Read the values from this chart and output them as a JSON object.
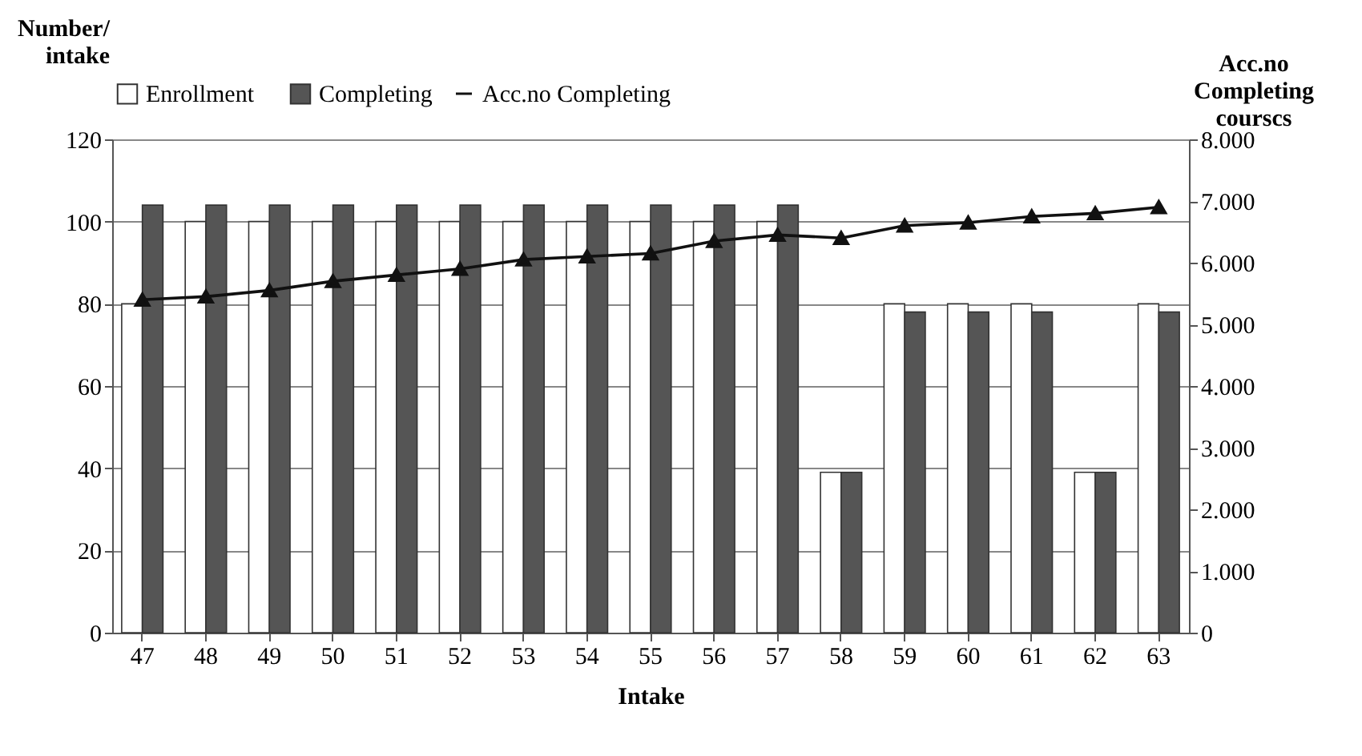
{
  "chart_data": {
    "type": "bar",
    "xlabel": "Intake",
    "ylabel": "Number/ intake",
    "y2label": "Acc.no Completing courscs",
    "categories": [
      "47",
      "48",
      "49",
      "50",
      "51",
      "52",
      "53",
      "54",
      "55",
      "56",
      "57",
      "58",
      "59",
      "60",
      "61",
      "62",
      "63"
    ],
    "series": [
      {
        "name": "Enrollment",
        "color": "#ffffff",
        "values": [
          80,
          100,
          100,
          100,
          100,
          100,
          100,
          100,
          100,
          100,
          100,
          39,
          80,
          80,
          80,
          39,
          80
        ]
      },
      {
        "name": "Completing",
        "color": "#555555",
        "values": [
          104,
          104,
          104,
          104,
          104,
          104,
          104,
          104,
          104,
          104,
          104,
          39,
          78,
          78,
          78,
          39,
          78
        ]
      },
      {
        "name": "Acc.no Completing",
        "type": "line",
        "axis": "y2",
        "color": "#111111",
        "marker": "triangle",
        "values": [
          5400,
          5450,
          5550,
          5700,
          5800,
          5900,
          6050,
          6100,
          6150,
          6350,
          6450,
          6400,
          6600,
          6650,
          6750,
          6800,
          6900
        ]
      }
    ],
    "ylim": [
      0,
      120
    ],
    "yticks": [
      0,
      20,
      40,
      60,
      80,
      100,
      120
    ],
    "y2lim": [
      0,
      8000
    ],
    "y2ticks": [
      {
        "value": 0,
        "label": "0"
      },
      {
        "value": 1000,
        "label": "1.000"
      },
      {
        "value": 2000,
        "label": "2.000"
      },
      {
        "value": 3000,
        "label": "3.000"
      },
      {
        "value": 4000,
        "label": "4.000"
      },
      {
        "value": 5000,
        "label": "5.000"
      },
      {
        "value": 6000,
        "label": "6.000"
      },
      {
        "value": 7000,
        "label": "7.000"
      },
      {
        "value": 8000,
        "label": "8.000"
      }
    ],
    "grid": "y",
    "legend": "top"
  }
}
